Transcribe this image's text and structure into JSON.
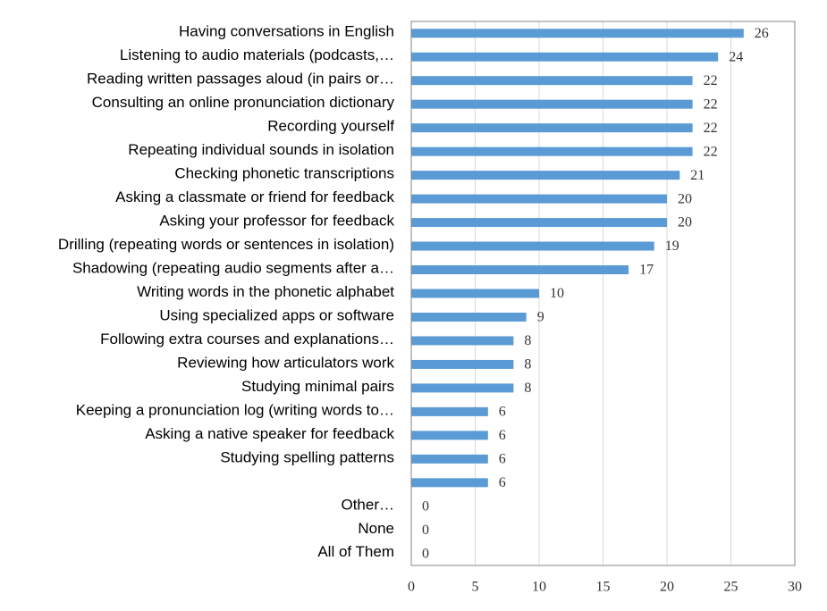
{
  "chart_data": {
    "type": "bar",
    "horizontal": true,
    "categories": [
      "Having conversations in English",
      "Listening to audio materials (podcasts,…",
      "Reading written passages aloud (in pairs or…",
      "Consulting an online pronunciation dictionary",
      "Recording yourself",
      "Repeating individual sounds in isolation",
      "Checking phonetic transcriptions",
      "Asking a classmate or friend for feedback",
      "Asking your professor for feedback",
      "Drilling (repeating words or sentences in isolation)",
      "Shadowing (repeating audio segments after a…",
      "Writing words in the phonetic alphabet",
      "Using specialized apps or software",
      "Following extra courses and explanations…",
      "Reviewing how articulators work",
      "Studying minimal pairs",
      "Keeping a pronunciation log (writing words to…",
      "Asking a native speaker for feedback",
      "Studying spelling patterns",
      null,
      "Other…",
      "None",
      "All of Them"
    ],
    "values": [
      26,
      24,
      22,
      22,
      22,
      22,
      21,
      20,
      20,
      19,
      17,
      10,
      9,
      8,
      8,
      8,
      6,
      6,
      6,
      6,
      0,
      0,
      0
    ],
    "color": "#5b9bd5",
    "xlim": [
      0,
      30
    ],
    "xticks": [
      0,
      5,
      10,
      15,
      20,
      25,
      30
    ],
    "grid": true
  }
}
